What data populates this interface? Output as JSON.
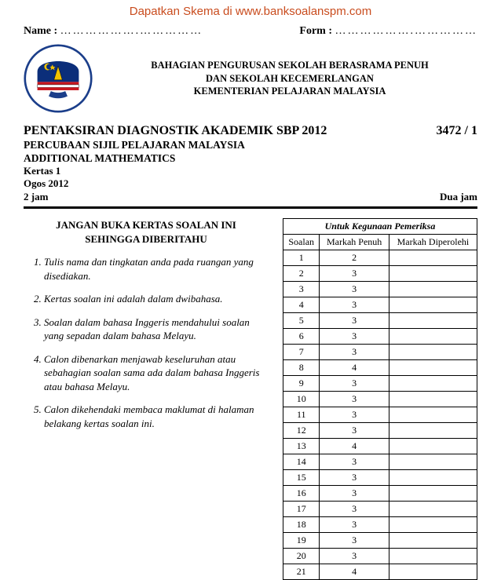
{
  "watermark": {
    "prefix": "Dapatkan Skema di ",
    "link": "www.banksoalanspm.com"
  },
  "topline": {
    "name_label": "Name :",
    "form_label": "Form :",
    "dots": "……………….……………"
  },
  "header": {
    "line1": "BAHAGIAN PENGURUSAN SEKOLAH BERASRAMA PENUH",
    "line2": "DAN SEKOLAH KECEMERLANGAN",
    "line3": "KEMENTERIAN PELAJARAN MALAYSIA"
  },
  "title": {
    "main": "PENTAKSIRAN DIAGNOSTIK  AKADEMIK SBP 2012",
    "code": "3472 / 1",
    "sub1": "PERCUBAAN SIJIL PELAJARAN MALAYSIA",
    "sub2": "ADDITIONAL MATHEMATICS",
    "kertas": "Kertas 1",
    "month": "Ogos 2012",
    "dur_left": "2 jam",
    "dur_right": "Dua jam"
  },
  "instr_head": {
    "l1": "JANGAN BUKA KERTAS SOALAN INI",
    "l2": "SEHINGGA DIBERITAHU"
  },
  "instructions": [
    "Tulis nama dan tingkatan anda pada ruangan yang disediakan.",
    "Kertas soalan ini adalah dalam dwibahasa.",
    "Soalan dalam bahasa Inggeris mendahului soalan yang sepadan dalam bahasa Melayu.",
    "Calon dibenarkan menjawab keseluruhan atau sebahagian soalan sama ada dalam bahasa Inggeris atau bahasa Melayu.",
    "Calon dikehendaki membaca maklumat di halaman belakang kertas soalan ini."
  ],
  "table": {
    "caption": "Untuk Kegunaan Pemeriksa",
    "col1": "Soalan",
    "col2": "Markah Penuh",
    "col3": "Markah Diperolehi",
    "rows": [
      {
        "q": "1",
        "m": "2"
      },
      {
        "q": "2",
        "m": "3"
      },
      {
        "q": "3",
        "m": "3"
      },
      {
        "q": "4",
        "m": "3"
      },
      {
        "q": "5",
        "m": "3"
      },
      {
        "q": "6",
        "m": "3"
      },
      {
        "q": "7",
        "m": "3"
      },
      {
        "q": "8",
        "m": "4"
      },
      {
        "q": "9",
        "m": "3"
      },
      {
        "q": "10",
        "m": "3"
      },
      {
        "q": "11",
        "m": "3"
      },
      {
        "q": "12",
        "m": "3"
      },
      {
        "q": "13",
        "m": "4"
      },
      {
        "q": "14",
        "m": "3"
      },
      {
        "q": "15",
        "m": "3"
      },
      {
        "q": "16",
        "m": "3"
      },
      {
        "q": "17",
        "m": "3"
      },
      {
        "q": "18",
        "m": "3"
      },
      {
        "q": "19",
        "m": "3"
      },
      {
        "q": "20",
        "m": "3"
      },
      {
        "q": "21",
        "m": "4"
      }
    ]
  }
}
